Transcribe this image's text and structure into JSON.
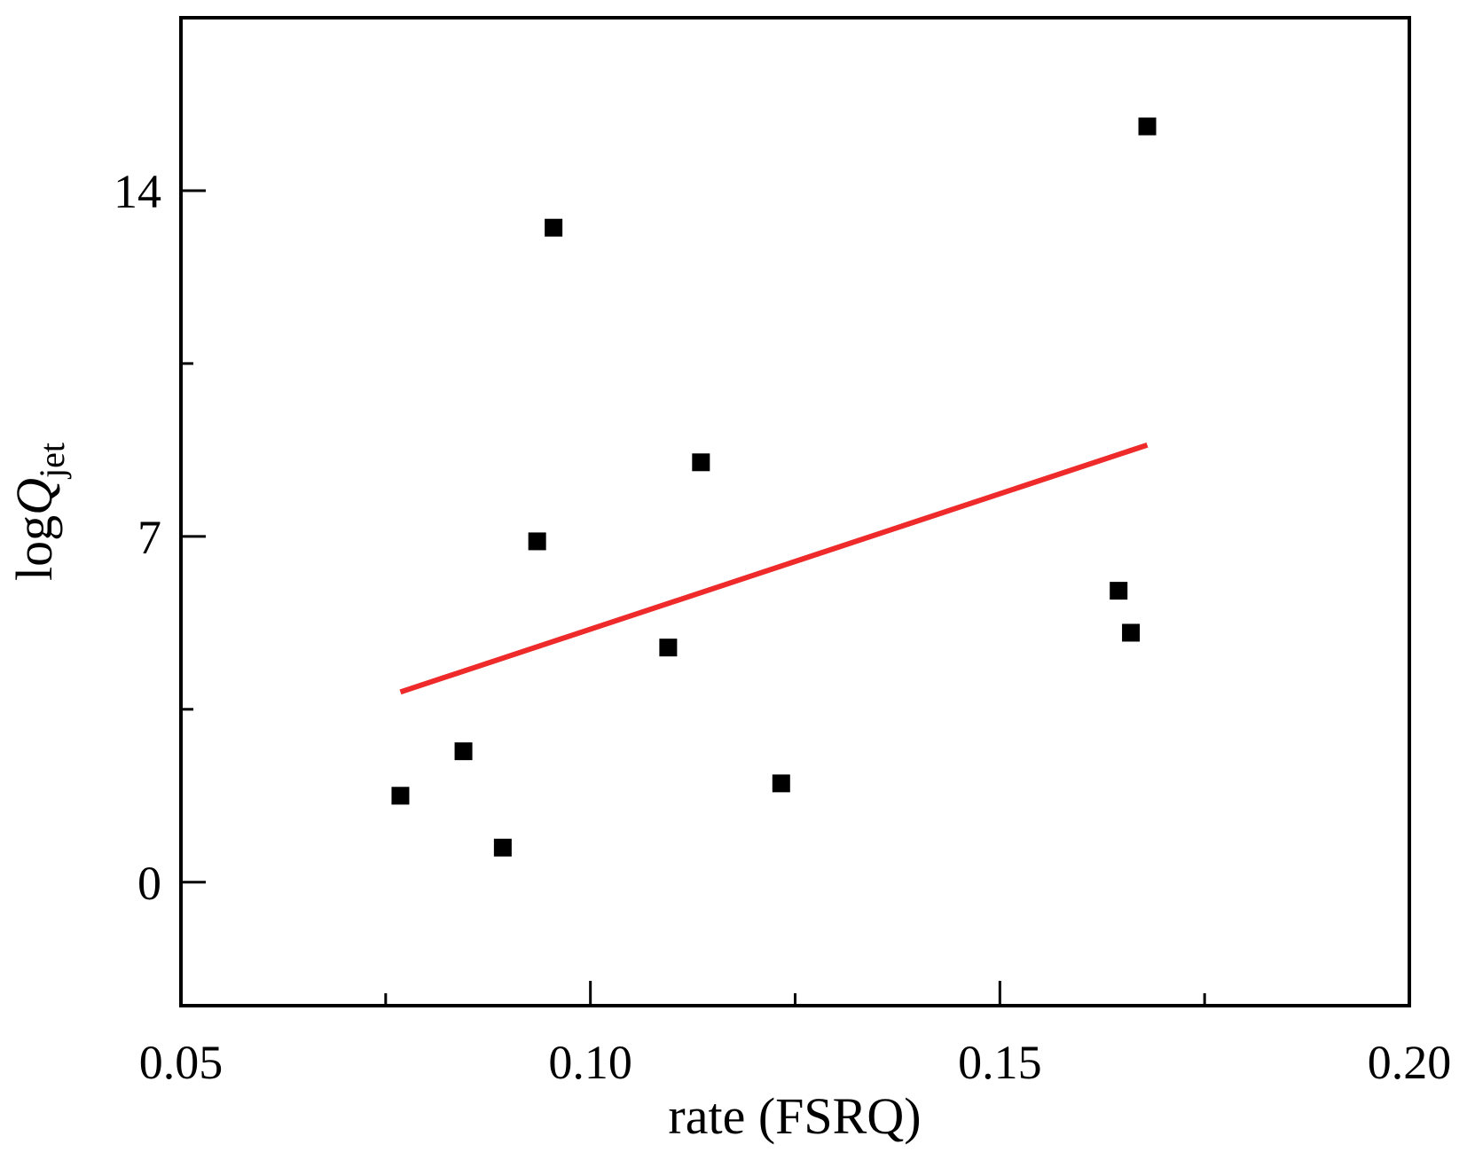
{
  "chart_data": {
    "type": "scatter",
    "xlabel": "rate (FSRQ)",
    "ylabel": {
      "prefix": "log",
      "symbol": "Q",
      "subscript": "jet"
    },
    "xlim": [
      0.05,
      0.2
    ],
    "ylim": [
      -2.5,
      17.5
    ],
    "x_ticks": [
      0.05,
      0.1,
      0.15,
      0.2
    ],
    "x_tick_labels": [
      "0.05",
      "0.10",
      "0.15",
      "0.20"
    ],
    "x_minor_ticks": [
      0.075,
      0.125,
      0.175
    ],
    "y_ticks": [
      0,
      7,
      14
    ],
    "y_tick_labels": [
      "0",
      "7",
      "14"
    ],
    "y_minor_ticks": [
      3.5,
      10.5
    ],
    "grid": false,
    "series": [
      {
        "marker": "square",
        "color": "#000000",
        "points": [
          {
            "x": 0.0768,
            "y": 1.75
          },
          {
            "x": 0.0845,
            "y": 2.65
          },
          {
            "x": 0.0893,
            "y": 0.7
          },
          {
            "x": 0.0935,
            "y": 6.9
          },
          {
            "x": 0.0955,
            "y": 13.25
          },
          {
            "x": 0.1095,
            "y": 4.75
          },
          {
            "x": 0.1135,
            "y": 8.5
          },
          {
            "x": 0.1233,
            "y": 2.0
          },
          {
            "x": 0.1645,
            "y": 5.9
          },
          {
            "x": 0.166,
            "y": 5.05
          },
          {
            "x": 0.168,
            "y": 15.3
          }
        ]
      }
    ],
    "fit_line": {
      "color": "#ee2a2a",
      "x": [
        0.0768,
        0.168
      ],
      "y": [
        3.85,
        8.85
      ]
    }
  }
}
